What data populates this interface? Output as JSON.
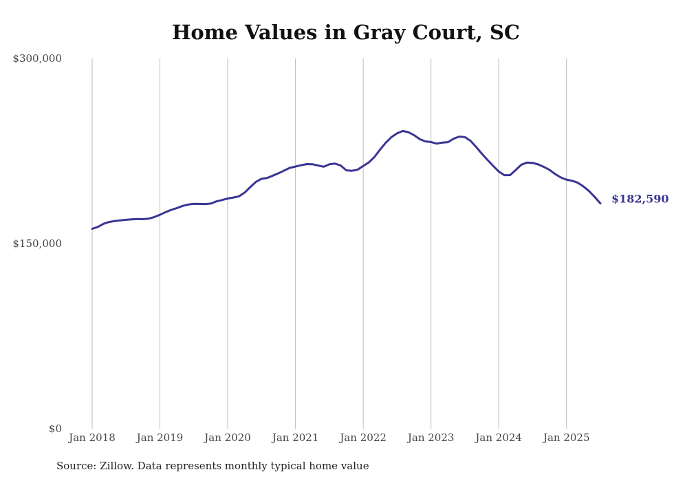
{
  "chart_data": {
    "type": "line",
    "title": "Home Values in Gray Court, SC",
    "source": "Source: Zillow. Data represents monthly typical home value",
    "xlabel": "",
    "ylabel": "",
    "ylim": [
      0,
      300000
    ],
    "y_ticks": [
      {
        "value": 0,
        "label": "$0"
      },
      {
        "value": 150000,
        "label": "$150,000"
      },
      {
        "value": 300000,
        "label": "$300,000"
      }
    ],
    "x_ticks": [
      {
        "value": "2018-01",
        "label": "Jan 2018"
      },
      {
        "value": "2019-01",
        "label": "Jan 2019"
      },
      {
        "value": "2020-01",
        "label": "Jan 2020"
      },
      {
        "value": "2021-01",
        "label": "Jan 2021"
      },
      {
        "value": "2022-01",
        "label": "Jan 2022"
      },
      {
        "value": "2023-01",
        "label": "Jan 2023"
      },
      {
        "value": "2024-01",
        "label": "Jan 2024"
      },
      {
        "value": "2025-01",
        "label": "Jan 2025"
      }
    ],
    "grid": "vertical",
    "line_color": "#3a3594",
    "end_label": "$182,590",
    "series": [
      {
        "x": [
          "2018-01",
          "2018-02",
          "2018-03",
          "2018-04",
          "2018-05",
          "2018-06",
          "2018-07",
          "2018-08",
          "2018-09",
          "2018-10",
          "2018-11",
          "2018-12",
          "2019-01",
          "2019-02",
          "2019-03",
          "2019-04",
          "2019-05",
          "2019-06",
          "2019-07",
          "2019-08",
          "2019-09",
          "2019-10",
          "2019-11",
          "2019-12",
          "2020-01",
          "2020-02",
          "2020-03",
          "2020-04",
          "2020-05",
          "2020-06",
          "2020-07",
          "2020-08",
          "2020-09",
          "2020-10",
          "2020-11",
          "2020-12",
          "2021-01",
          "2021-02",
          "2021-03",
          "2021-04",
          "2021-05",
          "2021-06",
          "2021-07",
          "2021-08",
          "2021-09",
          "2021-10",
          "2021-11",
          "2021-12",
          "2022-01",
          "2022-02",
          "2022-03",
          "2022-04",
          "2022-05",
          "2022-06",
          "2022-07",
          "2022-08",
          "2022-09",
          "2022-10",
          "2022-11",
          "2022-12",
          "2023-01",
          "2023-02",
          "2023-03",
          "2023-04",
          "2023-05",
          "2023-06",
          "2023-07",
          "2023-08",
          "2023-09",
          "2023-10",
          "2023-11",
          "2023-12",
          "2024-01",
          "2024-02",
          "2024-03",
          "2024-04",
          "2024-05",
          "2024-06",
          "2024-07",
          "2024-08",
          "2024-09",
          "2024-10",
          "2024-11",
          "2024-12",
          "2025-01",
          "2025-02",
          "2025-03",
          "2025-04",
          "2025-05",
          "2025-06",
          "2025-07"
        ],
        "values": [
          162000,
          163500,
          166000,
          167500,
          168300,
          168800,
          169300,
          169700,
          169900,
          169800,
          170200,
          171500,
          173300,
          175500,
          177300,
          178800,
          180500,
          181700,
          182200,
          182100,
          182000,
          182400,
          184200,
          185300,
          186500,
          187300,
          188300,
          191300,
          195800,
          200000,
          202500,
          203200,
          205100,
          207000,
          209200,
          211400,
          212400,
          213500,
          214400,
          214300,
          213300,
          212300,
          214300,
          214800,
          213300,
          209400,
          209000,
          209900,
          212900,
          215800,
          220300,
          226300,
          231800,
          236300,
          239400,
          241200,
          240300,
          237900,
          234700,
          232800,
          232300,
          231000,
          231800,
          232200,
          235000,
          236700,
          236300,
          233300,
          228300,
          222800,
          217800,
          213000,
          208400,
          205400,
          205500,
          209600,
          213900,
          215700,
          215400,
          214100,
          212100,
          209700,
          206300,
          203600,
          201800,
          200900,
          199300,
          196300,
          192500,
          187700,
          182590
        ]
      }
    ]
  }
}
